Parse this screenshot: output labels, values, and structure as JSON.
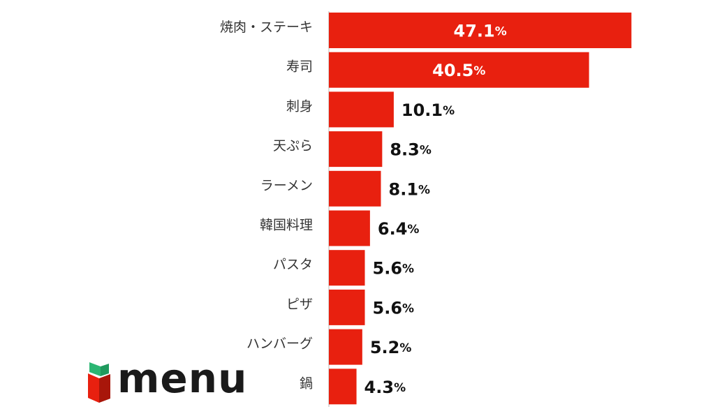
{
  "chart_data": {
    "type": "bar",
    "orientation": "horizontal",
    "categories": [
      "焼肉・ステーキ",
      "寿司",
      "刺身",
      "天ぷら",
      "ラーメン",
      "韓国料理",
      "パスタ",
      "ピザ",
      "ハンバーグ",
      "鍋"
    ],
    "values": [
      47.1,
      40.5,
      10.1,
      8.3,
      8.1,
      6.4,
      5.6,
      5.6,
      5.2,
      4.3
    ],
    "value_labels": [
      "47.1",
      "40.5",
      "10.1",
      "8.3",
      "8.1",
      "6.4",
      "5.6",
      "5.6",
      "5.2",
      "4.3"
    ],
    "unit": "%",
    "title": "",
    "xlabel": "",
    "ylabel": "",
    "grid": false,
    "legend": "none",
    "colors": {
      "bar": "#e8200f",
      "label_inside": "#ffffff",
      "label_outside": "#111111",
      "axis": "#cfcfcf"
    }
  },
  "logo": {
    "text": "menu",
    "colors": {
      "green": "#2bb673",
      "red": "#e8200f",
      "dark_red": "#a8160a",
      "text": "#1a1a1a"
    }
  }
}
